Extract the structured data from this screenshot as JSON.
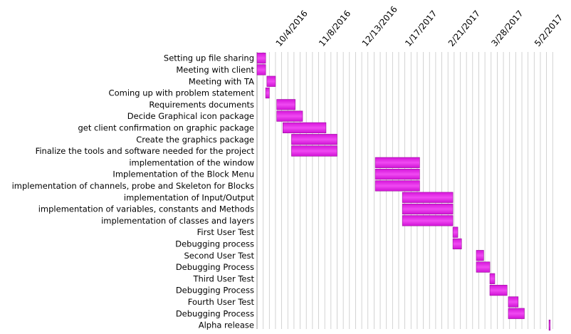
{
  "chart_data": {
    "type": "gantt",
    "title": "",
    "xlabel": "",
    "ylabel": "",
    "x_axis": {
      "min": "2016-09-19",
      "max": "2017-05-18",
      "tick_labels": [
        "10/4/2016",
        "11/8/2016",
        "12/13/2016",
        "1/17/2017",
        "2/21/2017",
        "3/28/2017",
        "5/2/2017"
      ],
      "tick_dates": [
        "2016-10-04",
        "2016-11-08",
        "2016-12-13",
        "2017-01-17",
        "2017-02-21",
        "2017-03-28",
        "2017-05-02"
      ],
      "position": "top",
      "label_rotation_deg": -50
    },
    "grid": {
      "vertical": true,
      "minor_interval_days": 5,
      "horizontal": false
    },
    "bar_color": "#e21ee6",
    "bar_edge_color": "#9a0f9c",
    "tasks": [
      {
        "name": "Setting up file sharing",
        "start": "2016-09-19",
        "end": "2016-09-26"
      },
      {
        "name": "Meeting with client",
        "start": "2016-09-19",
        "end": "2016-09-26"
      },
      {
        "name": "Meeting with TA",
        "start": "2016-09-27",
        "end": "2016-10-04"
      },
      {
        "name": "Coming up with problem statement",
        "start": "2016-09-26",
        "end": "2016-09-29"
      },
      {
        "name": "Requirements documents",
        "start": "2016-10-05",
        "end": "2016-10-20"
      },
      {
        "name": "Decide Graphical icon package",
        "start": "2016-10-05",
        "end": "2016-10-26"
      },
      {
        "name": "get client confirmation on graphic package",
        "start": "2016-10-10",
        "end": "2016-11-14"
      },
      {
        "name": "Create the graphics package",
        "start": "2016-10-17",
        "end": "2016-11-23"
      },
      {
        "name": "Finalize the tools and software needed for the project",
        "start": "2016-10-17",
        "end": "2016-11-23"
      },
      {
        "name": "implementation of the window",
        "start": "2016-12-24",
        "end": "2017-01-29"
      },
      {
        "name": "Implementation of  the Block Menu",
        "start": "2016-12-24",
        "end": "2017-01-29"
      },
      {
        "name": "implementation of channels, probe and Skeleton for Blocks",
        "start": "2016-12-24",
        "end": "2017-01-29"
      },
      {
        "name": "implementation of Input/Output",
        "start": "2017-01-15",
        "end": "2017-02-25"
      },
      {
        "name": "implementation of variables, constants and Methods",
        "start": "2017-01-15",
        "end": "2017-02-25"
      },
      {
        "name": "implementation of classes and layers",
        "start": "2017-01-15",
        "end": "2017-02-25"
      },
      {
        "name": "First User Test",
        "start": "2017-02-25",
        "end": "2017-03-01"
      },
      {
        "name": "Debugging process",
        "start": "2017-02-25",
        "end": "2017-03-04"
      },
      {
        "name": "Second User Test",
        "start": "2017-03-16",
        "end": "2017-03-22"
      },
      {
        "name": "Debugging Process",
        "start": "2017-03-16",
        "end": "2017-03-27"
      },
      {
        "name": "Third User Test",
        "start": "2017-03-27",
        "end": "2017-03-31"
      },
      {
        "name": "Debugging Process",
        "start": "2017-03-27",
        "end": "2017-04-10"
      },
      {
        "name": "Fourth User Test",
        "start": "2017-04-11",
        "end": "2017-04-19"
      },
      {
        "name": "Debugging Process",
        "start": "2017-04-11",
        "end": "2017-04-24"
      },
      {
        "name": "Alpha release",
        "start": "2017-05-14",
        "end": "2017-05-15"
      }
    ]
  }
}
